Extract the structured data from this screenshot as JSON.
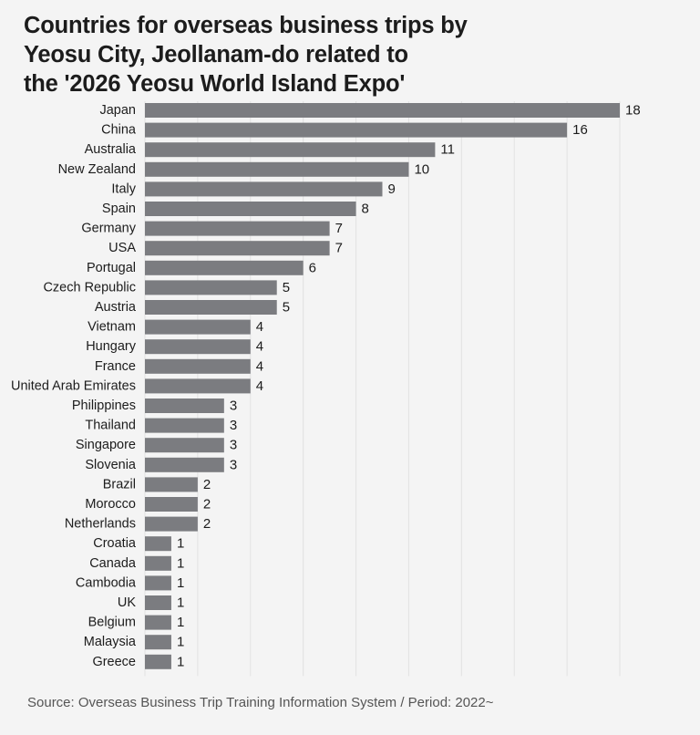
{
  "title": {
    "lines": [
      "Countries for overseas business trips by",
      "Yeosu City, Jeollanam-do related to",
      "the '2026 Yeosu World Island Expo'"
    ]
  },
  "source": "Source: Overseas Business Trip Training Information System / Period: 2022~",
  "colors": {
    "bar": "#7b7c80",
    "grid": "#e2e2e2",
    "background": "#f4f4f4"
  },
  "chart_data": {
    "type": "bar",
    "orientation": "horizontal",
    "title": "Countries for overseas business trips by Yeosu City, Jeollanam-do related to the '2026 Yeosu World Island Expo'",
    "xlabel": "",
    "ylabel": "",
    "xlim": [
      0,
      18
    ],
    "grid": true,
    "categories": [
      "Japan",
      "China",
      "Australia",
      "New Zealand",
      "Italy",
      "Spain",
      "Germany",
      "USA",
      "Portugal",
      "Czech Republic",
      "Austria",
      "Vietnam",
      "Hungary",
      "France",
      "United Arab Emirates",
      "Philippines",
      "Thailand",
      "Singapore",
      "Slovenia",
      "Brazil",
      "Morocco",
      "Netherlands",
      "Croatia",
      "Canada",
      "Cambodia",
      "UK",
      "Belgium",
      "Malaysia",
      "Greece"
    ],
    "values": [
      18,
      16,
      11,
      10,
      9,
      8,
      7,
      7,
      6,
      5,
      5,
      4,
      4,
      4,
      4,
      3,
      3,
      3,
      3,
      2,
      2,
      2,
      1,
      1,
      1,
      1,
      1,
      1,
      1
    ]
  }
}
